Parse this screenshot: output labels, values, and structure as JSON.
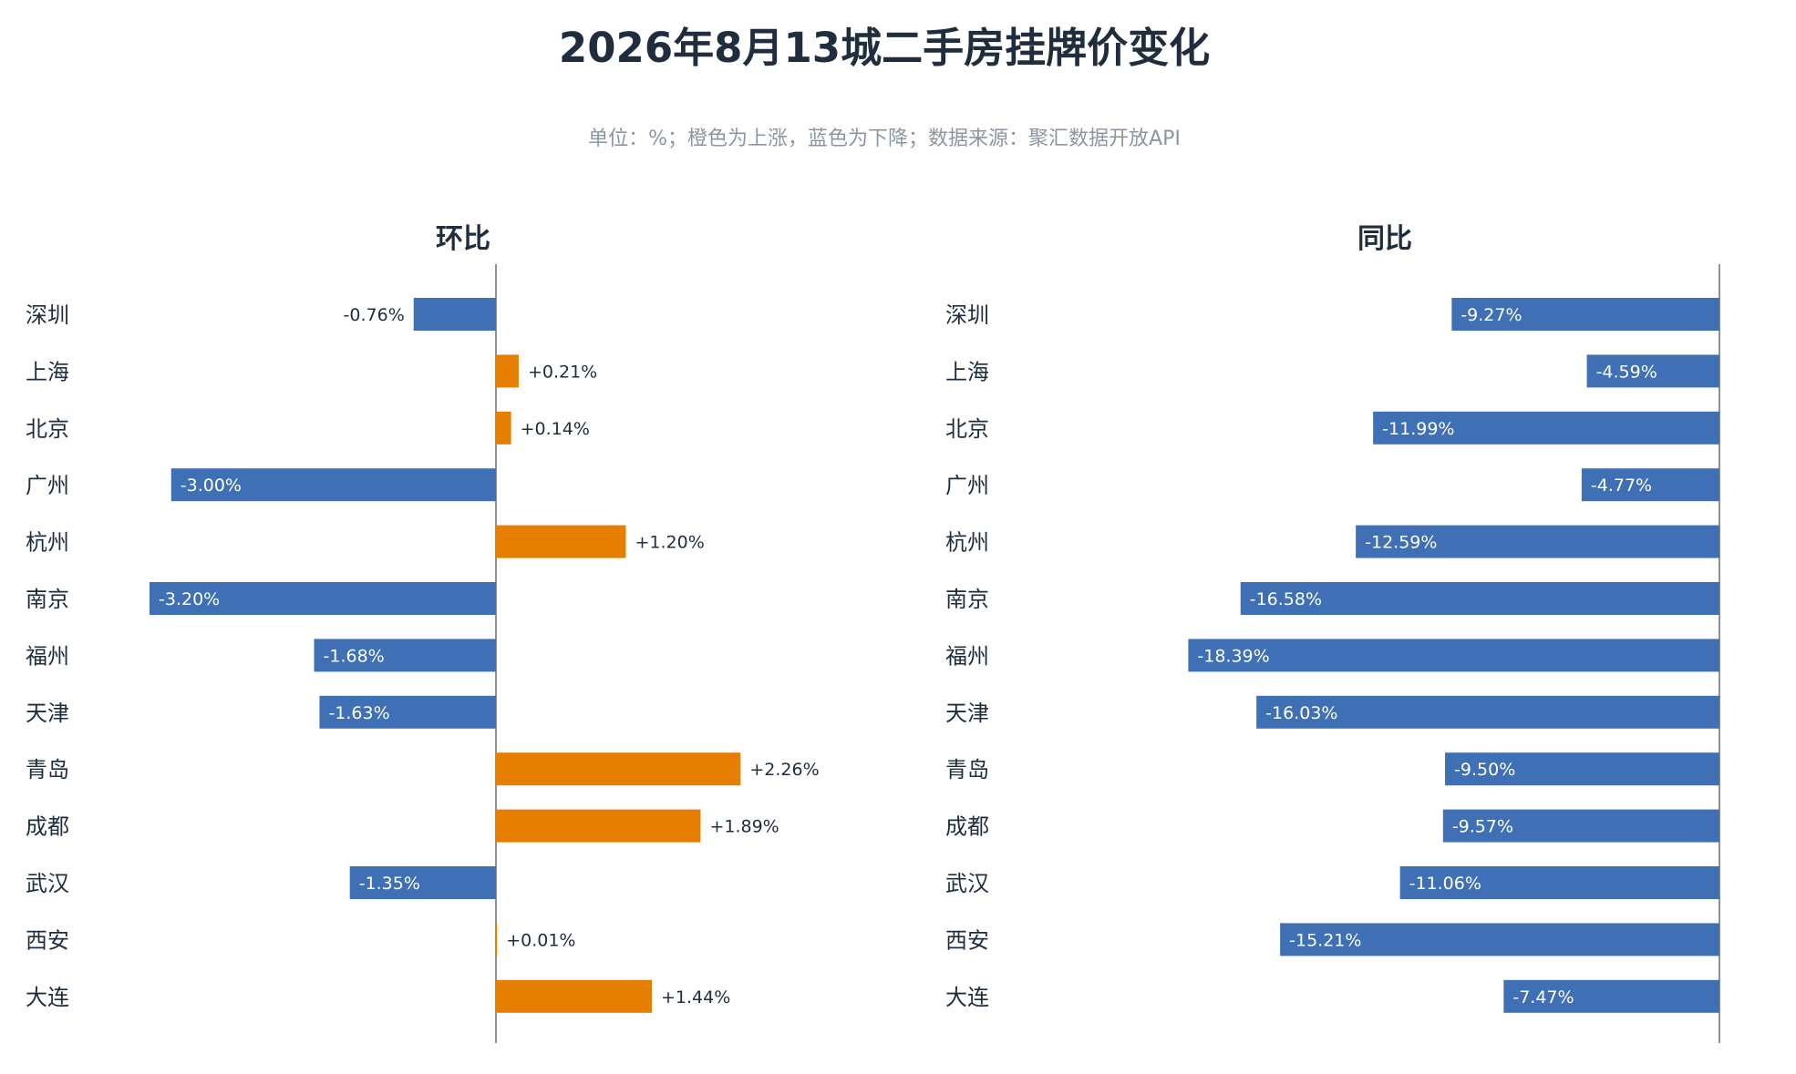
{
  "title": "2026年8月13城二手房挂牌价变化",
  "subtitle": "单位：%；橙色为上涨，蓝色为下降；数据来源：聚汇数据开放API",
  "colors": {
    "up": "#e67e00",
    "down": "#3f70b5",
    "axis": "#8a939c",
    "text": "#1f2d3d"
  },
  "chart_data": [
    {
      "type": "bar",
      "orientation": "horizontal",
      "title": "环比",
      "categories": [
        "深圳",
        "上海",
        "北京",
        "广州",
        "杭州",
        "南京",
        "福州",
        "天津",
        "青岛",
        "成都",
        "武汉",
        "西安",
        "大连"
      ],
      "values": [
        -0.76,
        0.21,
        0.14,
        -3.0,
        1.2,
        -3.2,
        -1.68,
        -1.63,
        2.26,
        1.89,
        -1.35,
        0.01,
        1.44
      ],
      "labels": [
        "-0.76%",
        "+0.21%",
        "+0.14%",
        "-3.00%",
        "+1.20%",
        "-3.20%",
        "-1.68%",
        "-1.63%",
        "+2.26%",
        "+1.89%",
        "-1.35%",
        "+0.01%",
        "+1.44%"
      ],
      "xlim": [
        -3.2,
        3.65
      ]
    },
    {
      "type": "bar",
      "orientation": "horizontal",
      "title": "同比",
      "categories": [
        "深圳",
        "上海",
        "北京",
        "广州",
        "杭州",
        "南京",
        "福州",
        "天津",
        "青岛",
        "成都",
        "武汉",
        "西安",
        "大连"
      ],
      "values": [
        -9.27,
        -4.59,
        -11.99,
        -4.77,
        -12.59,
        -16.58,
        -18.39,
        -16.03,
        -9.5,
        -9.57,
        -11.06,
        -15.21,
        -7.47
      ],
      "labels": [
        "-9.27%",
        "-4.59%",
        "-11.99%",
        "-4.77%",
        "-12.59%",
        "-16.58%",
        "-18.39%",
        "-16.03%",
        "-9.50%",
        "-9.57%",
        "-11.06%",
        "-15.21%",
        "-7.47%"
      ],
      "xlim": [
        -18.39,
        0
      ]
    }
  ]
}
